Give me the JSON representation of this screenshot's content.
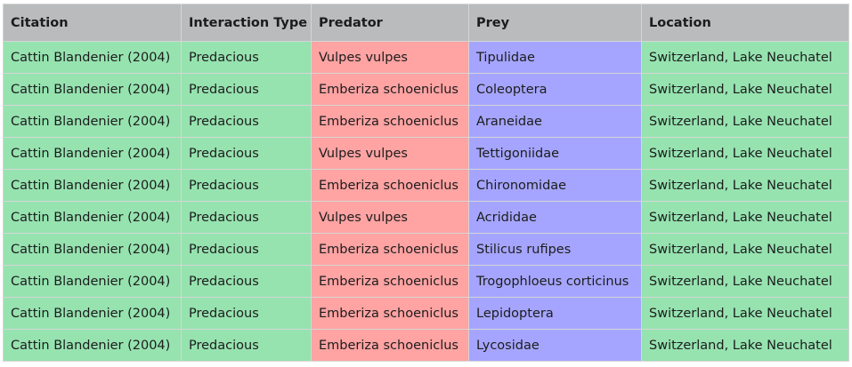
{
  "table": {
    "headers": [
      "Citation",
      "Interaction Type",
      "Predator",
      "Prey",
      "Location"
    ],
    "rows": [
      [
        "Cattin Blandenier (2004)",
        "Predacious",
        "Vulpes vulpes",
        "Tipulidae",
        "Switzerland, Lake Neuchatel"
      ],
      [
        "Cattin Blandenier (2004)",
        "Predacious",
        "Emberiza schoeniclus",
        "Coleoptera",
        "Switzerland, Lake Neuchatel"
      ],
      [
        "Cattin Blandenier (2004)",
        "Predacious",
        "Emberiza schoeniclus",
        "Araneidae",
        "Switzerland, Lake Neuchatel"
      ],
      [
        "Cattin Blandenier (2004)",
        "Predacious",
        "Vulpes vulpes",
        "Tettigoniidae",
        "Switzerland, Lake Neuchatel"
      ],
      [
        "Cattin Blandenier (2004)",
        "Predacious",
        "Emberiza schoeniclus",
        "Chironomidae",
        "Switzerland, Lake Neuchatel"
      ],
      [
        "Cattin Blandenier (2004)",
        "Predacious",
        "Vulpes vulpes",
        "Acrididae",
        "Switzerland, Lake Neuchatel"
      ],
      [
        "Cattin Blandenier (2004)",
        "Predacious",
        "Emberiza schoeniclus",
        "Stilicus rufipes",
        "Switzerland, Lake Neuchatel"
      ],
      [
        "Cattin Blandenier (2004)",
        "Predacious",
        "Emberiza schoeniclus",
        "Trogophloeus corticinus",
        "Switzerland, Lake Neuchatel"
      ],
      [
        "Cattin Blandenier (2004)",
        "Predacious",
        "Emberiza schoeniclus",
        "Lepidoptera",
        "Switzerland, Lake Neuchatel"
      ],
      [
        "Cattin Blandenier (2004)",
        "Predacious",
        "Emberiza schoeniclus",
        "Lycosidae",
        "Switzerland, Lake Neuchatel"
      ]
    ]
  },
  "colors": {
    "header_bg": "#b9bbbc",
    "citation_bg": "#96e3b0",
    "predator_bg": "#ffa3a3",
    "prey_bg": "#a5a5ff"
  }
}
